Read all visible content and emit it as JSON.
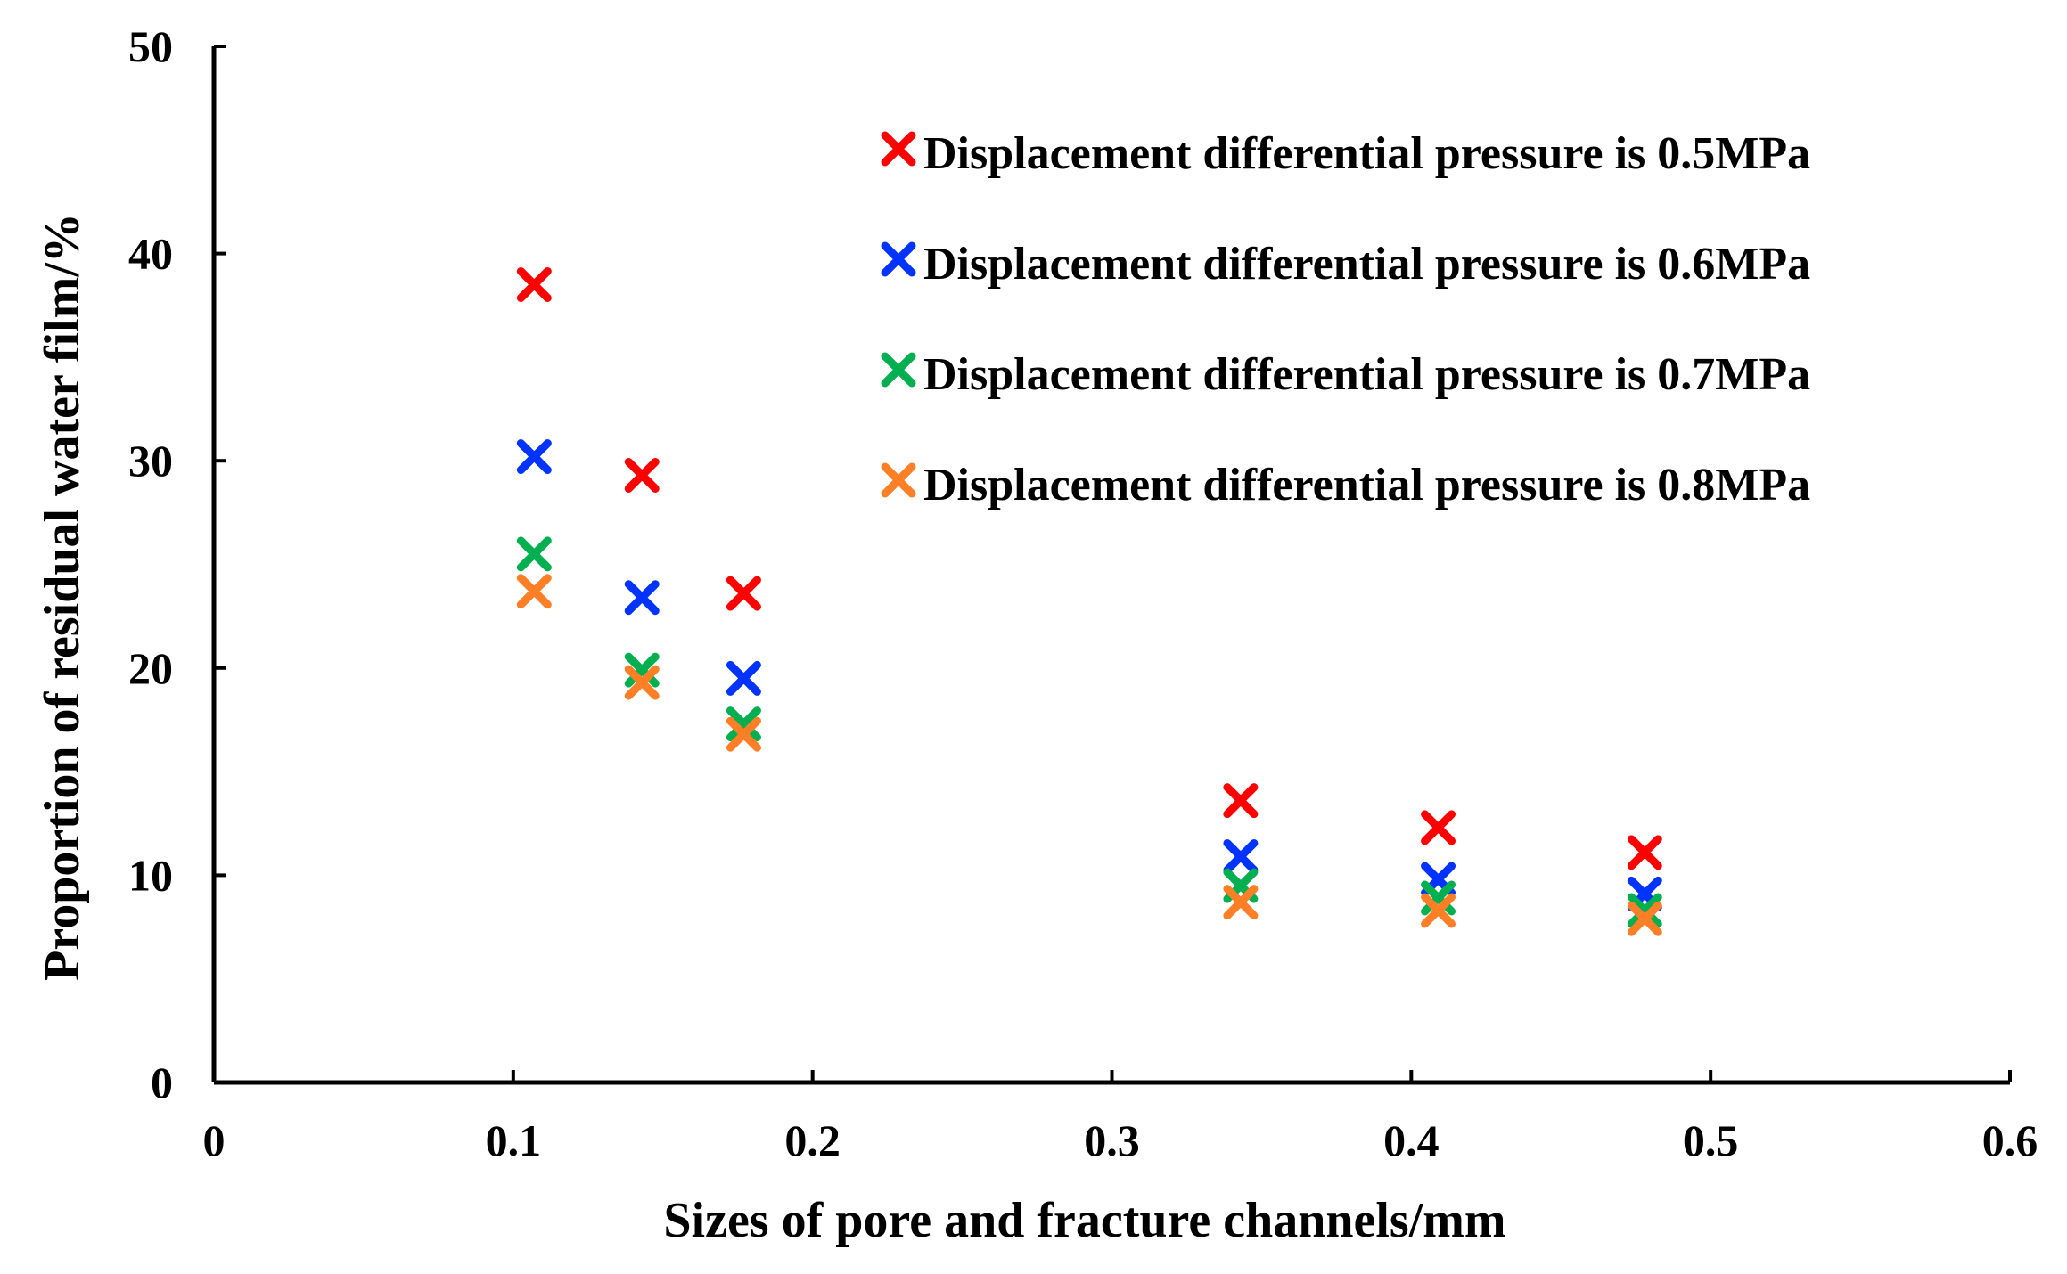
{
  "chart_data": {
    "type": "scatter",
    "title": "",
    "xlabel": "Sizes of pore and fracture channels/mm",
    "ylabel": "Proportion of residual water film/%",
    "xlim": [
      0,
      0.6
    ],
    "ylim": [
      0,
      50
    ],
    "xticks": [
      0,
      0.1,
      0.2,
      0.3,
      0.4,
      0.5,
      0.6
    ],
    "xtick_labels": [
      "0",
      "0.1",
      "0.2",
      "0.3",
      "0.4",
      "0.5",
      "0.6"
    ],
    "yticks": [
      0,
      10,
      20,
      30,
      40,
      50
    ],
    "ytick_labels": [
      "0",
      "10",
      "20",
      "30",
      "40",
      "50"
    ],
    "grid": false,
    "legend_position": "top-right",
    "marker": "x",
    "x": [
      0.107,
      0.143,
      0.177,
      0.343,
      0.409,
      0.478
    ],
    "series": [
      {
        "name": "Displacement differential pressure is 0.5MPa",
        "color": "#ff0000",
        "values": [
          38.5,
          29.3,
          23.6,
          13.6,
          12.3,
          11.1
        ]
      },
      {
        "name": "Displacement differential pressure is 0.6MPa",
        "color": "#0033ff",
        "values": [
          30.2,
          23.4,
          19.5,
          10.9,
          9.8,
          9.1
        ]
      },
      {
        "name": "Displacement differential pressure is 0.7MPa",
        "color": "#00b050",
        "values": [
          25.5,
          19.9,
          17.3,
          9.5,
          8.9,
          8.3
        ]
      },
      {
        "name": "Displacement differential pressure is 0.8MPa",
        "color": "#ff7f27",
        "values": [
          23.7,
          19.3,
          16.8,
          8.7,
          8.3,
          7.9
        ]
      }
    ]
  }
}
